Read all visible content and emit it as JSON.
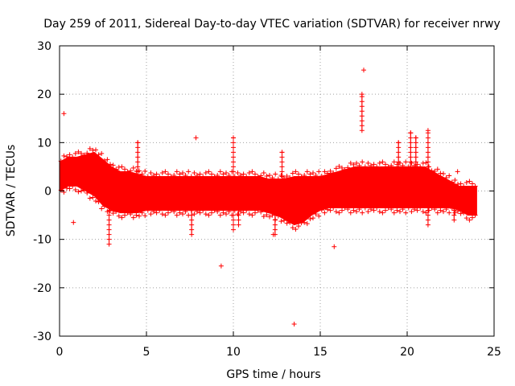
{
  "chart_data": {
    "type": "scatter",
    "title": "Day 259 of 2011, Sidereal Day-to-day VTEC variation (SDTVAR) for receiver nrwy",
    "xlabel": "GPS time / hours",
    "ylabel": "SDTVAR / TECUs",
    "xlim": [
      0,
      25
    ],
    "ylim": [
      -30,
      30
    ],
    "xticks": [
      0,
      5,
      10,
      15,
      20,
      25
    ],
    "yticks": [
      -30,
      -20,
      -10,
      0,
      10,
      20,
      30
    ],
    "grid": true,
    "marker": "+",
    "series_color": "#ff0000",
    "band": {
      "hours": [
        0.0,
        0.5,
        1.0,
        1.5,
        2.0,
        2.5,
        3.0,
        3.5,
        4.0,
        4.5,
        5.0,
        5.5,
        6.0,
        6.5,
        7.0,
        7.5,
        8.0,
        8.5,
        9.0,
        9.5,
        10.0,
        10.5,
        11.0,
        11.5,
        12.0,
        12.5,
        13.0,
        13.5,
        14.0,
        14.5,
        15.0,
        15.5,
        16.0,
        16.5,
        17.0,
        17.5,
        18.0,
        18.5,
        19.0,
        19.5,
        20.0,
        20.5,
        21.0,
        21.5,
        22.0,
        22.5,
        23.0,
        23.5,
        24.0
      ],
      "upper": [
        6,
        7,
        7,
        7.5,
        8,
        6.5,
        5,
        4,
        4,
        3.5,
        3,
        3,
        3,
        3,
        3,
        3,
        3,
        3,
        3,
        3,
        3,
        3,
        3,
        3,
        2.5,
        2.5,
        2.5,
        3,
        3,
        3,
        3,
        3.5,
        4,
        4.5,
        5,
        5,
        5,
        5,
        5,
        5,
        5,
        5,
        5,
        4,
        3,
        2,
        1,
        1,
        1
      ],
      "lower": [
        0,
        1,
        1,
        0,
        -1,
        -3,
        -4,
        -4.5,
        -4.5,
        -4.5,
        -4,
        -4,
        -4,
        -4,
        -4,
        -4,
        -4,
        -4,
        -4,
        -4,
        -4,
        -4,
        -4,
        -4,
        -4.5,
        -5,
        -6,
        -7,
        -6.5,
        -5,
        -4,
        -3.5,
        -3.5,
        -3.5,
        -3.5,
        -3.5,
        -3.5,
        -3.5,
        -3.5,
        -3.5,
        -3.5,
        -3.5,
        -3.5,
        -3.5,
        -3.5,
        -3.5,
        -4,
        -5,
        -5
      ]
    },
    "spikes": [
      {
        "x": 2.85,
        "lo": -11,
        "hi": 0
      },
      {
        "x": 4.5,
        "lo": 0,
        "hi": 10
      },
      {
        "x": 7.6,
        "lo": -9,
        "hi": 0
      },
      {
        "x": 10.0,
        "lo": -8,
        "hi": 11
      },
      {
        "x": 10.3,
        "lo": -7,
        "hi": 0
      },
      {
        "x": 12.4,
        "lo": -9,
        "hi": 0
      },
      {
        "x": 12.8,
        "lo": 0,
        "hi": 8
      },
      {
        "x": 17.4,
        "lo": 12.5,
        "hi": 20
      },
      {
        "x": 19.5,
        "lo": 0,
        "hi": 10
      },
      {
        "x": 20.2,
        "lo": 0,
        "hi": 12
      },
      {
        "x": 20.5,
        "lo": 0,
        "hi": 11
      },
      {
        "x": 21.2,
        "lo": -7,
        "hi": 12.5
      },
      {
        "x": 22.7,
        "lo": -6,
        "hi": 0
      }
    ],
    "outliers": [
      {
        "x": 0.25,
        "y": 16
      },
      {
        "x": 0.8,
        "y": -6.5
      },
      {
        "x": 7.85,
        "y": 11
      },
      {
        "x": 9.3,
        "y": -15.5
      },
      {
        "x": 12.3,
        "y": -9
      },
      {
        "x": 13.5,
        "y": -27.5
      },
      {
        "x": 15.8,
        "y": -11.5
      },
      {
        "x": 17.5,
        "y": 25
      },
      {
        "x": 22.9,
        "y": 4
      }
    ]
  }
}
